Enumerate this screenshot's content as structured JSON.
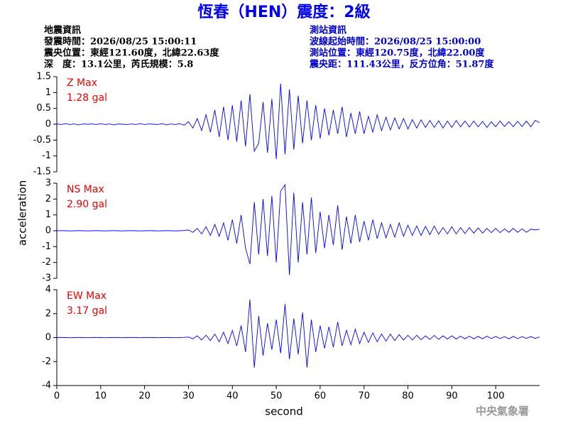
{
  "header": {
    "title": "恆春（HEN）震度：2級",
    "event_info": [
      "地震資訊",
      "發震時間：2026/08/25 15:00:11",
      "震央位置：東經121.60度，北緯22.63度",
      "深　度：13.1公里，芮氏規模：5.8"
    ],
    "station_info": [
      "測站資訊",
      "波線起始時間：2026/08/25 15:00:00",
      "測站位置：東經120.75度，北緯22.00度",
      "震央距：111.43公里，反方位角：51.87度"
    ],
    "footer": "中央氣象署"
  },
  "chart_data": [
    {
      "type": "line",
      "annotation": [
        "Z Max",
        "1.28 gal"
      ],
      "color": "#0000ff",
      "xlim": [
        0,
        110
      ],
      "ylim": [
        -1.5,
        1.5
      ],
      "yticks": [
        -1.5,
        -1,
        -0.5,
        0,
        0.5,
        1,
        1.5
      ],
      "x": [
        0,
        1,
        2,
        3,
        4,
        5,
        6,
        7,
        8,
        9,
        10,
        11,
        12,
        13,
        14,
        15,
        16,
        17,
        18,
        19,
        20,
        21,
        22,
        23,
        24,
        25,
        26,
        27,
        28,
        29,
        30,
        31,
        32,
        33,
        34,
        35,
        36,
        37,
        38,
        39,
        40,
        41,
        42,
        43,
        44,
        45,
        46,
        47,
        48,
        49,
        50,
        51,
        52,
        53,
        54,
        55,
        56,
        57,
        58,
        59,
        60,
        61,
        62,
        63,
        64,
        65,
        66,
        67,
        68,
        69,
        70,
        71,
        72,
        73,
        74,
        75,
        76,
        77,
        78,
        79,
        80,
        81,
        82,
        83,
        84,
        85,
        86,
        87,
        88,
        89,
        90,
        91,
        92,
        93,
        94,
        95,
        96,
        97,
        98,
        99,
        100,
        101,
        102,
        103,
        104,
        105,
        106,
        107,
        108,
        109,
        110
      ],
      "values": [
        0.01,
        -0.01,
        0.02,
        -0.01,
        0.01,
        -0.02,
        0.01,
        0,
        0.01,
        -0.01,
        0.02,
        -0.01,
        0.01,
        -0.02,
        0.01,
        0,
        -0.01,
        0.01,
        -0.01,
        0.02,
        -0.01,
        0.01,
        0,
        -0.01,
        0.02,
        -0.02,
        0.01,
        -0.01,
        0.02,
        -0.03,
        0.08,
        -0.12,
        0.18,
        -0.2,
        0.3,
        -0.25,
        0.45,
        -0.4,
        0.55,
        -0.5,
        0.6,
        -0.55,
        0.75,
        -0.7,
        0.95,
        -0.85,
        -0.6,
        0.7,
        -0.9,
        0.8,
        -1.1,
        1.28,
        -0.95,
        1.1,
        -0.8,
        0.9,
        -0.6,
        0.75,
        -0.5,
        0.6,
        -0.45,
        0.5,
        -0.35,
        0.45,
        -0.3,
        0.55,
        -0.4,
        0.35,
        -0.3,
        0.4,
        -0.3,
        0.25,
        -0.25,
        0.3,
        -0.2,
        0.22,
        -0.18,
        0.2,
        -0.15,
        0.18,
        -0.15,
        0.15,
        -0.12,
        0.14,
        -0.1,
        0.12,
        -0.1,
        0.11,
        -0.12,
        0.1,
        -0.1,
        0.12,
        -0.08,
        0.1,
        -0.09,
        0.1,
        -0.08,
        0.09,
        -0.1,
        0.08,
        -0.08,
        0.1,
        -0.07,
        0.08,
        -0.08,
        0.09,
        -0.07,
        0.1,
        -0.08,
        0.12,
        0.05
      ]
    },
    {
      "type": "line",
      "annotation": [
        "NS Max",
        "2.90 gal"
      ],
      "ylabel": "acceleration",
      "color": "#0000ff",
      "xlim": [
        0,
        110
      ],
      "ylim": [
        -3,
        3
      ],
      "yticks": [
        -3,
        -2,
        -1,
        0,
        1,
        2,
        3
      ],
      "x": [
        0,
        1,
        2,
        3,
        4,
        5,
        6,
        7,
        8,
        9,
        10,
        11,
        12,
        13,
        14,
        15,
        16,
        17,
        18,
        19,
        20,
        21,
        22,
        23,
        24,
        25,
        26,
        27,
        28,
        29,
        30,
        31,
        32,
        33,
        34,
        35,
        36,
        37,
        38,
        39,
        40,
        41,
        42,
        43,
        44,
        45,
        46,
        47,
        48,
        49,
        50,
        51,
        52,
        53,
        54,
        55,
        56,
        57,
        58,
        59,
        60,
        61,
        62,
        63,
        64,
        65,
        66,
        67,
        68,
        69,
        70,
        71,
        72,
        73,
        74,
        75,
        76,
        77,
        78,
        79,
        80,
        81,
        82,
        83,
        84,
        85,
        86,
        87,
        88,
        89,
        90,
        91,
        92,
        93,
        94,
        95,
        96,
        97,
        98,
        99,
        100,
        101,
        102,
        103,
        104,
        105,
        106,
        107,
        108,
        109,
        110
      ],
      "values": [
        0,
        0.01,
        0,
        -0.01,
        0,
        0.01,
        0,
        -0.01,
        0,
        0.01,
        0,
        -0.01,
        0,
        0.01,
        0,
        -0.01,
        0,
        0.01,
        0,
        -0.01,
        0,
        0.01,
        0,
        -0.01,
        0,
        0.01,
        0,
        -0.01,
        0,
        0.02,
        0.05,
        -0.1,
        0.15,
        -0.2,
        0.25,
        -0.3,
        0.4,
        -0.35,
        0.5,
        -0.6,
        0.7,
        -0.8,
        1.0,
        -1.1,
        -2.1,
        1.8,
        -1.5,
        2.0,
        -1.6,
        2.2,
        -2.0,
        2.5,
        2.9,
        -2.8,
        2.4,
        -2.0,
        1.8,
        -1.5,
        2.1,
        -1.4,
        1.2,
        -1.1,
        1.0,
        -0.9,
        1.6,
        -1.2,
        0.9,
        -0.8,
        1.0,
        -0.7,
        0.6,
        -0.6,
        0.7,
        -0.5,
        0.5,
        -0.45,
        0.4,
        -0.4,
        0.5,
        -0.35,
        0.35,
        -0.3,
        0.3,
        -0.3,
        0.28,
        -0.25,
        0.3,
        -0.22,
        0.2,
        -0.2,
        0.25,
        -0.2,
        0.2,
        -0.18,
        0.2,
        -0.15,
        0.18,
        -0.15,
        0.15,
        -0.12,
        0.15,
        -0.12,
        0.12,
        -0.1,
        0.15,
        -0.1,
        0.12,
        -0.1,
        0.1,
        0.05,
        0.1
      ]
    },
    {
      "type": "line",
      "annotation": [
        "EW Max",
        "3.17 gal"
      ],
      "xlabel": "second",
      "color": "#0000ff",
      "xlim": [
        0,
        110
      ],
      "xticks": [
        0,
        10,
        20,
        30,
        40,
        50,
        60,
        70,
        80,
        90,
        100
      ],
      "ylim": [
        -4,
        4
      ],
      "yticks": [
        -4,
        -2,
        0,
        2,
        4
      ],
      "x": [
        0,
        1,
        2,
        3,
        4,
        5,
        6,
        7,
        8,
        9,
        10,
        11,
        12,
        13,
        14,
        15,
        16,
        17,
        18,
        19,
        20,
        21,
        22,
        23,
        24,
        25,
        26,
        27,
        28,
        29,
        30,
        31,
        32,
        33,
        34,
        35,
        36,
        37,
        38,
        39,
        40,
        41,
        42,
        43,
        44,
        45,
        46,
        47,
        48,
        49,
        50,
        51,
        52,
        53,
        54,
        55,
        56,
        57,
        58,
        59,
        60,
        61,
        62,
        63,
        64,
        65,
        66,
        67,
        68,
        69,
        70,
        71,
        72,
        73,
        74,
        75,
        76,
        77,
        78,
        79,
        80,
        81,
        82,
        83,
        84,
        85,
        86,
        87,
        88,
        89,
        90,
        91,
        92,
        93,
        94,
        95,
        96,
        97,
        98,
        99,
        100,
        101,
        102,
        103,
        104,
        105,
        106,
        107,
        108,
        109,
        110
      ],
      "values": [
        0,
        0.01,
        0,
        -0.01,
        0,
        0.01,
        0,
        -0.01,
        0,
        0.01,
        0,
        -0.01,
        0,
        0.01,
        0,
        -0.01,
        0,
        0.01,
        0,
        -0.01,
        0,
        0.01,
        0,
        -0.01,
        0,
        0.01,
        0,
        -0.01,
        0,
        0.02,
        0.05,
        -0.1,
        0.15,
        -0.2,
        0.2,
        -0.25,
        0.3,
        -0.35,
        0.45,
        -0.5,
        0.6,
        -0.7,
        1.0,
        -1.2,
        3.17,
        -2.5,
        1.8,
        -1.5,
        1.2,
        -1.0,
        1.5,
        -1.3,
        2.8,
        -1.8,
        1.6,
        -1.4,
        2.1,
        -2.5,
        1.5,
        -1.2,
        1.0,
        -0.9,
        0.9,
        -0.8,
        1.3,
        -0.7,
        0.6,
        -0.6,
        0.7,
        -0.5,
        0.45,
        -0.4,
        0.4,
        -0.35,
        0.3,
        -0.3,
        0.3,
        -0.25,
        0.25,
        -0.2,
        0.2,
        -0.2,
        0.2,
        -0.18,
        0.15,
        -0.15,
        0.18,
        -0.15,
        0.15,
        -0.12,
        0.15,
        -0.12,
        0.12,
        -0.1,
        0.12,
        -0.1,
        0.1,
        -0.1,
        0.12,
        -0.08,
        0.1,
        -0.08,
        0.08,
        -0.1,
        0.1,
        -0.08,
        0.08,
        -0.06,
        0.08,
        -0.06,
        0.05
      ]
    }
  ]
}
